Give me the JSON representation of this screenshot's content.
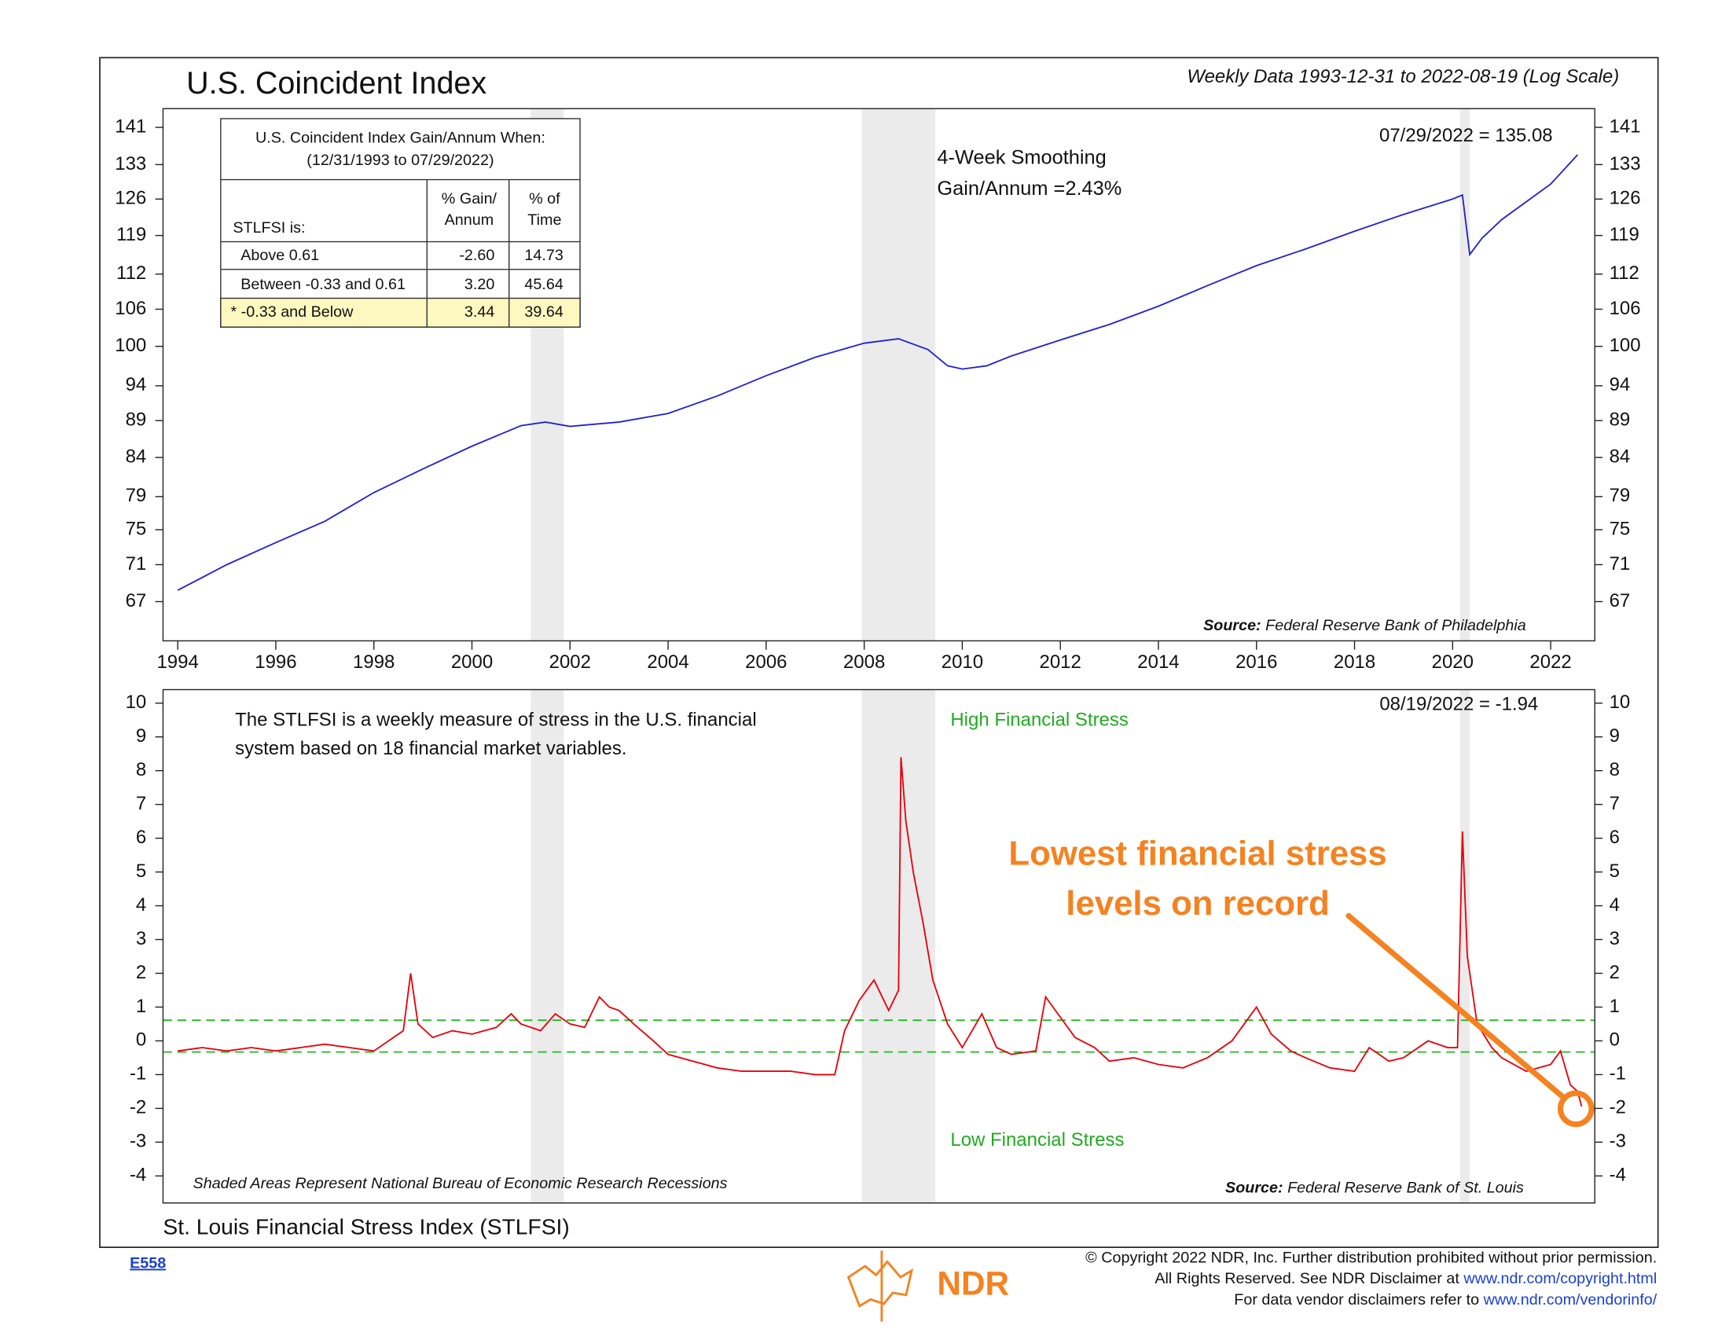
{
  "chart_data": [
    {
      "type": "line",
      "title": "U.S. Coincident Index",
      "subtitle": "Weekly Data 1993-12-31 to 2022-08-19 (Log Scale)",
      "log": true,
      "color": "#2222cc",
      "x": [
        1994,
        1995,
        1996,
        1997,
        1998,
        1999,
        2000,
        2001,
        2001.5,
        2002,
        2003,
        2004,
        2005,
        2006,
        2007,
        2008,
        2008.7,
        2009.3,
        2009.7,
        2010,
        2010.5,
        2011,
        2012,
        2013,
        2014,
        2015,
        2016,
        2017,
        2018,
        2019,
        2020,
        2020.2,
        2020.35,
        2020.6,
        2021,
        2022,
        2022.55
      ],
      "values": [
        68.2,
        71,
        73.5,
        76,
        79.5,
        82.5,
        85.5,
        88.3,
        88.8,
        88.2,
        88.8,
        90,
        92.5,
        95.5,
        98.3,
        100.5,
        101.2,
        99.5,
        97,
        96.5,
        97,
        98.5,
        101,
        103.5,
        106.5,
        110,
        113.5,
        116.5,
        119.8,
        123,
        126,
        126.8,
        115.5,
        118.5,
        122,
        129,
        135.08
      ],
      "xlim": [
        1993.7,
        2022.9
      ],
      "ylim": [
        63,
        145.2
      ],
      "xticks": [
        1994,
        1996,
        1998,
        2000,
        2002,
        2004,
        2006,
        2008,
        2010,
        2012,
        2014,
        2016,
        2018,
        2020,
        2022
      ],
      "yticks": [
        67,
        71,
        75,
        79,
        84,
        89,
        94,
        100,
        106,
        112,
        119,
        126,
        133,
        141
      ],
      "recessions": [
        [
          2001.2,
          2001.87
        ],
        [
          2007.95,
          2009.45
        ],
        [
          2020.15,
          2020.35
        ]
      ],
      "last_label": "07/29/2022 = 135.08",
      "note1": "4-Week Smoothing",
      "note2": "Gain/Annum =2.43%",
      "source_label": "Source:",
      "source": "Federal Reserve Bank of Philadelphia",
      "table": {
        "title": "U.S. Coincident Index Gain/Annum When:",
        "period": "(12/31/1993 to 07/29/2022)",
        "row_header": "STLFSI is:",
        "col1": [
          "% Gain/",
          "Annum"
        ],
        "col2": [
          "% of",
          "Time"
        ],
        "rows": [
          [
            "Above 0.61",
            "-2.60",
            "14.73"
          ],
          [
            "Between -0.33 and 0.61",
            "3.20",
            "45.64"
          ],
          [
            "* -0.33 and Below",
            "3.44",
            "39.64"
          ]
        ]
      }
    },
    {
      "type": "line",
      "title": "St. Louis Financial Stress Index (STLFSI)",
      "color": "#e8000b",
      "x": [
        1994,
        1994.5,
        1995,
        1995.5,
        1996,
        1996.5,
        1997,
        1997.5,
        1998,
        1998.6,
        1998.75,
        1998.9,
        1999.2,
        1999.6,
        2000,
        2000.5,
        2000.8,
        2001,
        2001.4,
        2001.7,
        2002,
        2002.3,
        2002.6,
        2002.8,
        2003,
        2003.3,
        2003.7,
        2004,
        2004.5,
        2005,
        2005.5,
        2006,
        2006.5,
        2007,
        2007.4,
        2007.6,
        2007.9,
        2008.2,
        2008.5,
        2008.7,
        2008.75,
        2008.85,
        2009,
        2009.2,
        2009.4,
        2009.7,
        2010,
        2010.4,
        2010.7,
        2011,
        2011.5,
        2011.7,
        2011.9,
        2012.3,
        2012.7,
        2013,
        2013.5,
        2014,
        2014.5,
        2015,
        2015.5,
        2016,
        2016.3,
        2016.7,
        2017,
        2017.5,
        2018,
        2018.3,
        2018.7,
        2019,
        2019.5,
        2019.9,
        2020.1,
        2020.2,
        2020.3,
        2020.5,
        2020.8,
        2021,
        2021.5,
        2022,
        2022.2,
        2022.4,
        2022.55,
        2022.63
      ],
      "values": [
        -0.3,
        -0.2,
        -0.3,
        -0.2,
        -0.3,
        -0.2,
        -0.1,
        -0.2,
        -0.3,
        0.3,
        2.0,
        0.5,
        0.1,
        0.3,
        0.2,
        0.4,
        0.8,
        0.5,
        0.3,
        0.8,
        0.5,
        0.4,
        1.3,
        1.0,
        0.9,
        0.5,
        0.0,
        -0.4,
        -0.6,
        -0.8,
        -0.9,
        -0.9,
        -0.9,
        -1.0,
        -1.0,
        0.3,
        1.2,
        1.8,
        0.9,
        1.5,
        8.4,
        6.5,
        5.0,
        3.5,
        1.8,
        0.5,
        -0.2,
        0.8,
        -0.2,
        -0.4,
        -0.3,
        1.3,
        0.9,
        0.1,
        -0.2,
        -0.6,
        -0.5,
        -0.7,
        -0.8,
        -0.5,
        0.0,
        1.0,
        0.2,
        -0.3,
        -0.5,
        -0.8,
        -0.9,
        -0.2,
        -0.6,
        -0.5,
        0.0,
        -0.2,
        -0.2,
        6.2,
        2.5,
        0.5,
        -0.2,
        -0.5,
        -0.9,
        -0.7,
        -0.3,
        -1.3,
        -1.5,
        -1.94
      ],
      "xlim": [
        1993.7,
        2022.9
      ],
      "ylim": [
        -4.8,
        10.4
      ],
      "yticks": [
        -4,
        -3,
        -2,
        -1,
        0,
        1,
        2,
        3,
        4,
        5,
        6,
        7,
        8,
        9,
        10
      ],
      "recessions": [
        [
          2001.2,
          2001.87
        ],
        [
          2007.95,
          2009.45
        ],
        [
          2020.15,
          2020.35
        ]
      ],
      "thresholds": [
        0.61,
        -0.33
      ],
      "threshold_color": "#22bb22",
      "last_label": "08/19/2022 = -1.94",
      "note1": "The STLFSI is a weekly measure of stress in the U.S. financial",
      "note2": "system based on 18 financial market variables.",
      "high": "High Financial Stress",
      "low": "Low Financial Stress",
      "callout": [
        "Lowest financial stress",
        "levels on record"
      ],
      "shade_note": "Shaded Areas Represent National Bureau of Economic Research Recessions",
      "source_label": "Source:",
      "source": "Federal Reserve Bank of St. Louis"
    }
  ],
  "footer": {
    "code": "E558",
    "logo": "NDR",
    "line1": "© Copyright 2022 NDR, Inc. Further distribution prohibited without prior permission.",
    "line2": "All Rights Reserved. See NDR Disclaimer at ",
    "link2": "www.ndr.com/copyright.html",
    "line3": "For data vendor disclaimers refer to ",
    "link3": "www.ndr.com/vendorinfo/"
  }
}
